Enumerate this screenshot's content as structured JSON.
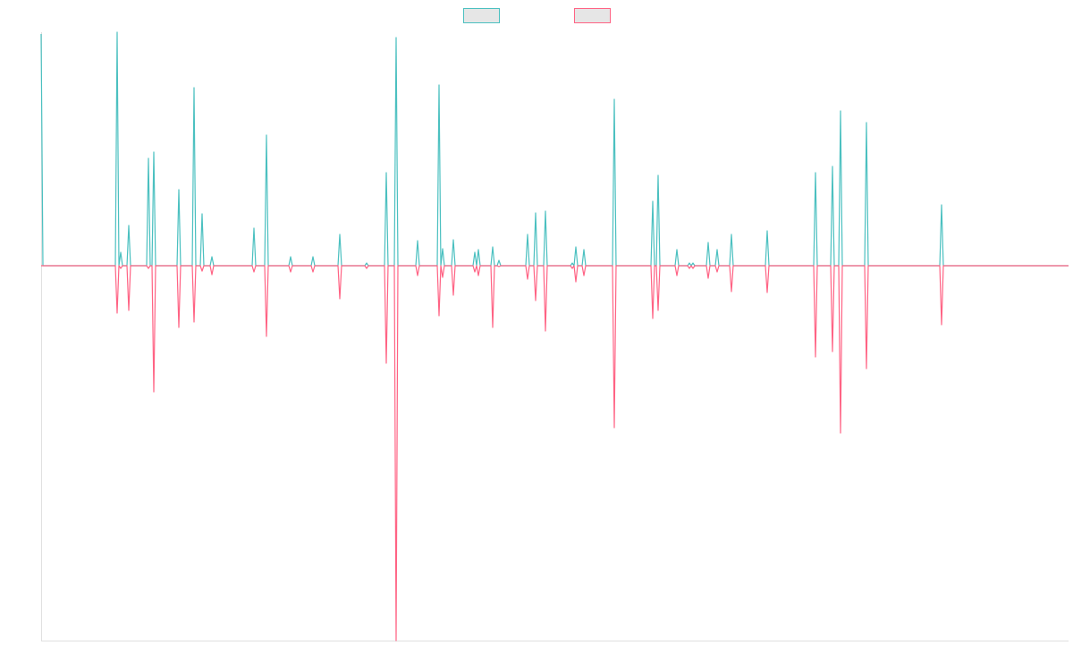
{
  "chart_data": {
    "type": "line",
    "xlim": [
      0,
      1149
    ],
    "ylim": [
      -419,
      261
    ],
    "x": [
      0,
      2,
      83,
      85,
      87,
      89,
      91,
      96,
      98,
      100,
      118,
      120,
      122,
      124,
      126,
      128,
      152,
      154,
      156,
      169,
      171,
      173,
      178,
      180,
      182,
      189,
      191,
      193,
      236,
      238,
      240,
      250,
      252,
      254,
      277,
      279,
      281,
      302,
      304,
      306,
      332,
      334,
      336,
      362,
      364,
      366,
      384,
      386,
      388,
      395,
      397,
      399,
      419,
      421,
      423,
      443,
      445,
      447,
      449,
      451,
      459,
      461,
      463,
      483,
      485,
      487,
      489,
      491,
      503,
      505,
      507,
      510,
      512,
      514,
      542,
      544,
      546,
      551,
      553,
      555,
      562,
      564,
      566,
      592,
      594,
      596,
      598,
      600,
      605,
      607,
      609,
      639,
      641,
      643,
      682,
      684,
      686,
      688,
      690,
      692,
      709,
      711,
      713,
      723,
      725,
      727,
      729,
      731,
      744,
      746,
      748,
      754,
      756,
      758,
      770,
      772,
      774,
      810,
      812,
      814,
      864,
      866,
      868,
      883,
      885,
      887,
      892,
      894,
      896,
      921,
      923,
      925,
      1005,
      1007,
      1009,
      1149
    ],
    "series": [
      {
        "color": "#4bc0c0",
        "values": [
          259,
          0,
          0,
          261,
          0,
          15,
          0,
          0,
          45,
          0,
          0,
          120,
          0,
          0,
          127,
          0,
          0,
          85,
          0,
          0,
          199,
          0,
          0,
          58,
          0,
          0,
          10,
          0,
          0,
          42,
          0,
          0,
          146,
          0,
          0,
          10,
          0,
          0,
          10,
          0,
          0,
          35,
          0,
          0,
          3,
          0,
          0,
          104,
          0,
          0,
          255,
          0,
          0,
          28,
          0,
          0,
          202,
          0,
          19,
          0,
          0,
          29,
          0,
          0,
          15,
          0,
          18,
          0,
          0,
          21,
          0,
          0,
          6,
          0,
          0,
          35,
          0,
          0,
          59,
          0,
          0,
          61,
          0,
          0,
          3,
          0,
          21,
          0,
          0,
          18,
          0,
          0,
          186,
          0,
          0,
          72,
          0,
          0,
          101,
          0,
          0,
          18,
          0,
          0,
          3,
          0,
          3,
          0,
          0,
          26,
          0,
          0,
          18,
          0,
          0,
          35,
          0,
          0,
          39,
          0,
          0,
          104,
          0,
          0,
          111,
          0,
          0,
          173,
          0,
          0,
          160,
          0,
          0,
          68,
          0,
          0
        ]
      },
      {
        "color": "#ff6384",
        "values": [
          0,
          0,
          0,
          -53,
          0,
          -3,
          0,
          0,
          -50,
          0,
          0,
          -3,
          0,
          0,
          -141,
          0,
          0,
          -69,
          0,
          0,
          -63,
          0,
          0,
          -6,
          0,
          0,
          -10,
          0,
          0,
          -7,
          0,
          0,
          -79,
          0,
          0,
          -7,
          0,
          0,
          -7,
          0,
          0,
          -37,
          0,
          0,
          -3,
          0,
          0,
          -109,
          0,
          0,
          -419,
          0,
          0,
          -11,
          0,
          0,
          -56,
          0,
          -13,
          0,
          0,
          -33,
          0,
          0,
          -7,
          0,
          -11,
          0,
          0,
          -69,
          0,
          0,
          -1,
          0,
          0,
          -15,
          0,
          0,
          -39,
          0,
          0,
          -73,
          0,
          0,
          -3,
          0,
          -18,
          0,
          0,
          -11,
          0,
          0,
          -181,
          0,
          0,
          -59,
          0,
          0,
          -50,
          0,
          0,
          -11,
          0,
          0,
          -3,
          0,
          -3,
          0,
          0,
          -14,
          0,
          0,
          -7,
          0,
          0,
          -29,
          0,
          0,
          -30,
          0,
          0,
          -102,
          0,
          0,
          -96,
          0,
          0,
          -187,
          0,
          0,
          -115,
          0,
          0,
          -66,
          0,
          0
        ]
      }
    ]
  }
}
